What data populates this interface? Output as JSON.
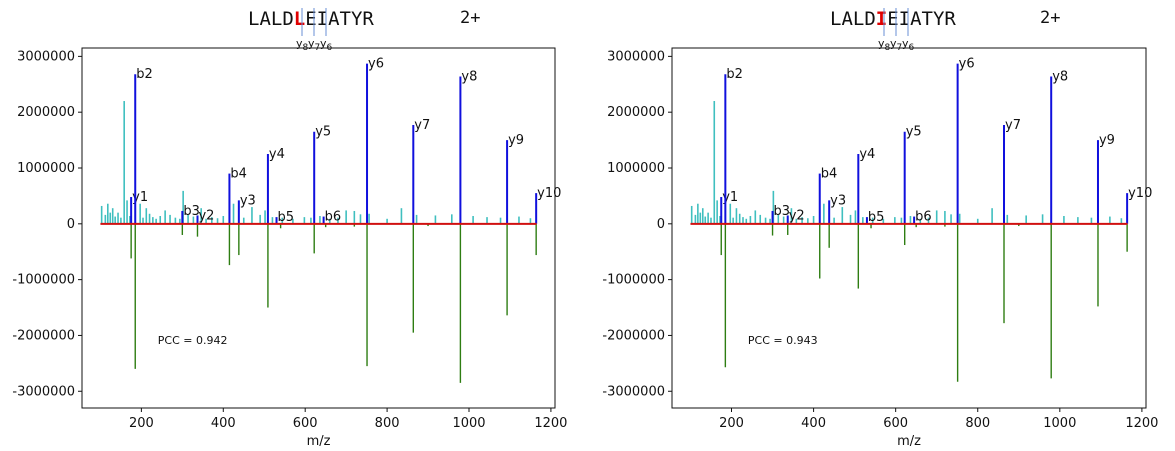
{
  "colors": {
    "highlight": "#e00000",
    "labeled_peak": "#1010dd",
    "unlabeled_peak": "#3fbfbf",
    "mirror_peak": "#2e7d12",
    "baseline": "#d01010",
    "bracket": "#6a8fd6",
    "axis": "#111111"
  },
  "chart_data": [
    {
      "type": "bar",
      "peptide": {
        "prefix": "LALD",
        "highlight": "L",
        "suffix": "EIATYR"
      },
      "charge": "2+",
      "fragment_marks": [
        "y8",
        "y7",
        "y6"
      ],
      "xlabel": "m/z",
      "xlim": [
        55,
        1210
      ],
      "ylim": [
        -3300000,
        3150000
      ],
      "xticks": [
        200,
        400,
        600,
        800,
        1000,
        1200
      ],
      "yticks": [
        3000000,
        2000000,
        1000000,
        0,
        -1000000,
        -2000000,
        -3000000
      ],
      "xtick_labels": [
        "200",
        "400",
        "600",
        "800",
        "1000",
        "1200"
      ],
      "ytick_labels": [
        "3000000",
        "2000000",
        "1000000",
        "0",
        "-1000000",
        "-2000000",
        "-3000000"
      ],
      "annotation": "PCC = 0.942",
      "annotation_pos": [
        240,
        -2150000
      ],
      "labeled_peaks": [
        {
          "label": "y1",
          "mz": 175,
          "intensity": 480000
        },
        {
          "label": "b2",
          "mz": 185,
          "intensity": 2680000
        },
        {
          "label": "b3",
          "mz": 300,
          "intensity": 230000
        },
        {
          "label": "y2",
          "mz": 337,
          "intensity": 150000
        },
        {
          "label": "b4",
          "mz": 415,
          "intensity": 900000
        },
        {
          "label": "y3",
          "mz": 438,
          "intensity": 420000
        },
        {
          "label": "y4",
          "mz": 509,
          "intensity": 1250000
        },
        {
          "label": "b5",
          "mz": 530,
          "intensity": 120000
        },
        {
          "label": "y5",
          "mz": 622,
          "intensity": 1650000
        },
        {
          "label": "b6",
          "mz": 645,
          "intensity": 130000
        },
        {
          "label": "y6",
          "mz": 751,
          "intensity": 2870000
        },
        {
          "label": "y7",
          "mz": 864,
          "intensity": 1770000
        },
        {
          "label": "y8",
          "mz": 979,
          "intensity": 2640000
        },
        {
          "label": "y9",
          "mz": 1093,
          "intensity": 1500000
        },
        {
          "label": "y10",
          "mz": 1164,
          "intensity": 550000
        }
      ],
      "unlabeled_peaks": [
        [
          103,
          320000
        ],
        [
          112,
          160000
        ],
        [
          118,
          360000
        ],
        [
          124,
          200000
        ],
        [
          130,
          280000
        ],
        [
          136,
          130000
        ],
        [
          143,
          200000
        ],
        [
          150,
          110000
        ],
        [
          158,
          2200000
        ],
        [
          165,
          420000
        ],
        [
          172,
          140000
        ],
        [
          197,
          360000
        ],
        [
          204,
          110000
        ],
        [
          212,
          280000
        ],
        [
          220,
          180000
        ],
        [
          228,
          120000
        ],
        [
          236,
          90000
        ],
        [
          246,
          140000
        ],
        [
          258,
          240000
        ],
        [
          270,
          160000
        ],
        [
          283,
          110000
        ],
        [
          294,
          90000
        ],
        [
          302,
          590000
        ],
        [
          314,
          160000
        ],
        [
          327,
          130000
        ],
        [
          346,
          280000
        ],
        [
          358,
          90000
        ],
        [
          372,
          120000
        ],
        [
          386,
          100000
        ],
        [
          400,
          140000
        ],
        [
          425,
          360000
        ],
        [
          450,
          110000
        ],
        [
          470,
          300000
        ],
        [
          490,
          160000
        ],
        [
          502,
          240000
        ],
        [
          520,
          120000
        ],
        [
          544,
          110000
        ],
        [
          570,
          90000
        ],
        [
          598,
          120000
        ],
        [
          614,
          110000
        ],
        [
          636,
          140000
        ],
        [
          660,
          90000
        ],
        [
          680,
          110000
        ],
        [
          700,
          240000
        ],
        [
          720,
          230000
        ],
        [
          735,
          170000
        ],
        [
          756,
          180000
        ],
        [
          800,
          90000
        ],
        [
          835,
          280000
        ],
        [
          872,
          160000
        ],
        [
          918,
          150000
        ],
        [
          958,
          170000
        ],
        [
          1010,
          140000
        ],
        [
          1044,
          120000
        ],
        [
          1077,
          110000
        ],
        [
          1122,
          130000
        ],
        [
          1150,
          100000
        ]
      ],
      "mirror_peaks": [
        [
          175,
          -620000
        ],
        [
          185,
          -2600000
        ],
        [
          300,
          -200000
        ],
        [
          337,
          -230000
        ],
        [
          415,
          -740000
        ],
        [
          438,
          -560000
        ],
        [
          509,
          -1500000
        ],
        [
          622,
          -530000
        ],
        [
          751,
          -2550000
        ],
        [
          864,
          -1950000
        ],
        [
          979,
          -2850000
        ],
        [
          1093,
          -1640000
        ],
        [
          1164,
          -560000
        ],
        [
          540,
          -80000
        ],
        [
          650,
          -60000
        ],
        [
          720,
          -50000
        ],
        [
          900,
          -40000
        ]
      ]
    },
    {
      "type": "bar",
      "peptide": {
        "prefix": "LALD",
        "highlight": "I",
        "suffix": "EIATYR"
      },
      "charge": "2+",
      "fragment_marks": [
        "y8",
        "y7",
        "y6"
      ],
      "xlabel": "m/z",
      "xlim": [
        55,
        1210
      ],
      "ylim": [
        -3300000,
        3150000
      ],
      "xticks": [
        200,
        400,
        600,
        800,
        1000,
        1200
      ],
      "yticks": [
        3000000,
        2000000,
        1000000,
        0,
        -1000000,
        -2000000,
        -3000000
      ],
      "xtick_labels": [
        "200",
        "400",
        "600",
        "800",
        "1000",
        "1200"
      ],
      "ytick_labels": [
        "3000000",
        "2000000",
        "1000000",
        "0",
        "-1000000",
        "-2000000",
        "-3000000"
      ],
      "annotation": "PCC = 0.943",
      "annotation_pos": [
        240,
        -2150000
      ],
      "labeled_peaks": [
        {
          "label": "y1",
          "mz": 175,
          "intensity": 480000
        },
        {
          "label": "b2",
          "mz": 185,
          "intensity": 2680000
        },
        {
          "label": "b3",
          "mz": 300,
          "intensity": 230000
        },
        {
          "label": "y2",
          "mz": 337,
          "intensity": 150000
        },
        {
          "label": "b4",
          "mz": 415,
          "intensity": 900000
        },
        {
          "label": "y3",
          "mz": 438,
          "intensity": 420000
        },
        {
          "label": "y4",
          "mz": 509,
          "intensity": 1250000
        },
        {
          "label": "b5",
          "mz": 530,
          "intensity": 120000
        },
        {
          "label": "y5",
          "mz": 622,
          "intensity": 1650000
        },
        {
          "label": "b6",
          "mz": 645,
          "intensity": 130000
        },
        {
          "label": "y6",
          "mz": 751,
          "intensity": 2870000
        },
        {
          "label": "y7",
          "mz": 864,
          "intensity": 1770000
        },
        {
          "label": "y8",
          "mz": 979,
          "intensity": 2640000
        },
        {
          "label": "y9",
          "mz": 1093,
          "intensity": 1500000
        },
        {
          "label": "y10",
          "mz": 1164,
          "intensity": 550000
        }
      ],
      "unlabeled_peaks": [
        [
          103,
          320000
        ],
        [
          112,
          160000
        ],
        [
          118,
          360000
        ],
        [
          124,
          200000
        ],
        [
          130,
          280000
        ],
        [
          136,
          130000
        ],
        [
          143,
          200000
        ],
        [
          150,
          110000
        ],
        [
          158,
          2200000
        ],
        [
          165,
          420000
        ],
        [
          172,
          140000
        ],
        [
          197,
          360000
        ],
        [
          204,
          110000
        ],
        [
          212,
          280000
        ],
        [
          220,
          180000
        ],
        [
          228,
          120000
        ],
        [
          236,
          90000
        ],
        [
          246,
          140000
        ],
        [
          258,
          240000
        ],
        [
          270,
          160000
        ],
        [
          283,
          110000
        ],
        [
          294,
          90000
        ],
        [
          302,
          590000
        ],
        [
          314,
          160000
        ],
        [
          327,
          130000
        ],
        [
          346,
          280000
        ],
        [
          358,
          90000
        ],
        [
          372,
          120000
        ],
        [
          386,
          100000
        ],
        [
          400,
          140000
        ],
        [
          425,
          360000
        ],
        [
          450,
          110000
        ],
        [
          470,
          300000
        ],
        [
          490,
          160000
        ],
        [
          502,
          240000
        ],
        [
          520,
          120000
        ],
        [
          544,
          110000
        ],
        [
          570,
          90000
        ],
        [
          598,
          120000
        ],
        [
          614,
          110000
        ],
        [
          636,
          140000
        ],
        [
          660,
          90000
        ],
        [
          680,
          110000
        ],
        [
          700,
          240000
        ],
        [
          720,
          230000
        ],
        [
          735,
          170000
        ],
        [
          756,
          180000
        ],
        [
          800,
          90000
        ],
        [
          835,
          280000
        ],
        [
          872,
          160000
        ],
        [
          918,
          150000
        ],
        [
          958,
          170000
        ],
        [
          1010,
          140000
        ],
        [
          1044,
          120000
        ],
        [
          1077,
          110000
        ],
        [
          1122,
          130000
        ],
        [
          1150,
          100000
        ]
      ],
      "mirror_peaks": [
        [
          175,
          -560000
        ],
        [
          185,
          -2570000
        ],
        [
          300,
          -210000
        ],
        [
          337,
          -200000
        ],
        [
          415,
          -980000
        ],
        [
          438,
          -430000
        ],
        [
          509,
          -1160000
        ],
        [
          622,
          -380000
        ],
        [
          751,
          -2830000
        ],
        [
          864,
          -1780000
        ],
        [
          979,
          -2770000
        ],
        [
          1093,
          -1480000
        ],
        [
          1164,
          -500000
        ],
        [
          540,
          -80000
        ],
        [
          650,
          -60000
        ],
        [
          720,
          -50000
        ],
        [
          900,
          -40000
        ]
      ]
    }
  ]
}
